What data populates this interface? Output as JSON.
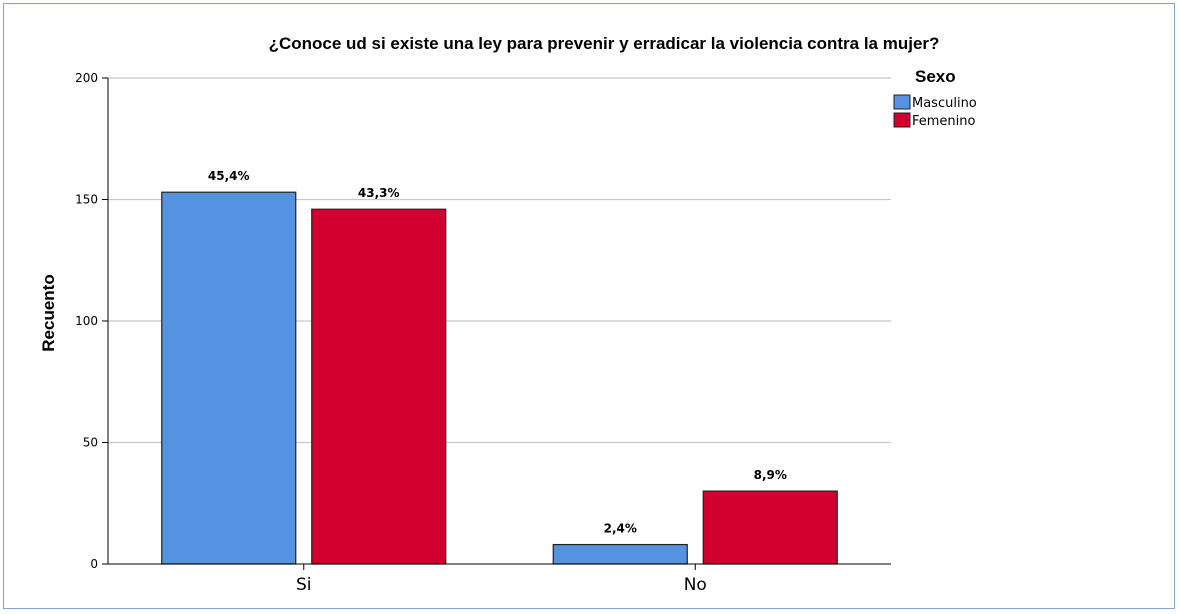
{
  "chart_data": {
    "type": "bar",
    "title": "¿Conoce ud si existe una ley para prevenir y erradicar la violencia contra la mujer?",
    "xlabel": "",
    "ylabel": "Recuento",
    "ylim": [
      0,
      200
    ],
    "yticks": [
      0,
      50,
      100,
      150,
      200
    ],
    "grid": true,
    "categories": [
      "Si",
      "No"
    ],
    "series": [
      {
        "name": "Masculino",
        "color": "#5593e0",
        "values": [
          153,
          8
        ],
        "labels": [
          "45,4%",
          "2,4%"
        ]
      },
      {
        "name": "Femenino",
        "color": "#d2002f",
        "values": [
          146,
          30
        ],
        "labels": [
          "43,3%",
          "8,9%"
        ]
      }
    ],
    "legend": {
      "title": "Sexo",
      "position": "top-right"
    }
  }
}
